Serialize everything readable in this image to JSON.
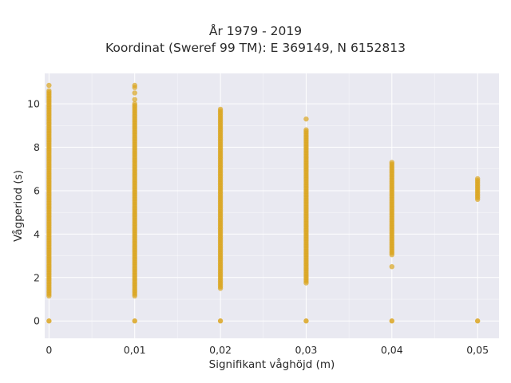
{
  "chart_data": {
    "type": "scatter",
    "title": "År 1979 - 2019",
    "subtitle": "Koordinat (Sweref 99 TM): E 369149, N 6152813",
    "xlabel": "Signifikant våghöjd (m)",
    "ylabel": "Vågperiod (s)",
    "xlim": [
      -0.0005,
      0.0525
    ],
    "ylim": [
      -0.8,
      11.4
    ],
    "xticks": [
      0,
      0.01,
      0.02,
      0.03,
      0.04,
      0.05
    ],
    "xtick_labels": [
      "0",
      "0,01",
      "0,02",
      "0,03",
      "0,04",
      "0,05"
    ],
    "yticks": [
      0,
      2,
      4,
      6,
      8,
      10
    ],
    "ytick_labels": [
      "0",
      "2",
      "4",
      "6",
      "8",
      "10"
    ],
    "grid": true,
    "marker_color": "#DAA520",
    "plot_background": "#E9E9F1",
    "columns": [
      {
        "x": 0,
        "y_min": 1.15,
        "y_max": 10.6,
        "zero_point": true,
        "outliers": [
          10.85
        ]
      },
      {
        "x": 0.01,
        "y_min": 1.15,
        "y_max": 10.0,
        "zero_point": true,
        "outliers": [
          10.2,
          10.5,
          10.75,
          10.85
        ]
      },
      {
        "x": 0.02,
        "y_min": 1.5,
        "y_max": 9.75,
        "zero_point": true,
        "outliers": []
      },
      {
        "x": 0.03,
        "y_min": 1.75,
        "y_max": 8.8,
        "zero_point": true,
        "outliers": [
          9.3
        ]
      },
      {
        "x": 0.04,
        "y_min": 3.05,
        "y_max": 7.3,
        "zero_point": true,
        "outliers": [
          2.5
        ]
      },
      {
        "x": 0.05,
        "y_min": 5.6,
        "y_max": 6.55,
        "zero_point": true,
        "outliers": []
      }
    ]
  }
}
